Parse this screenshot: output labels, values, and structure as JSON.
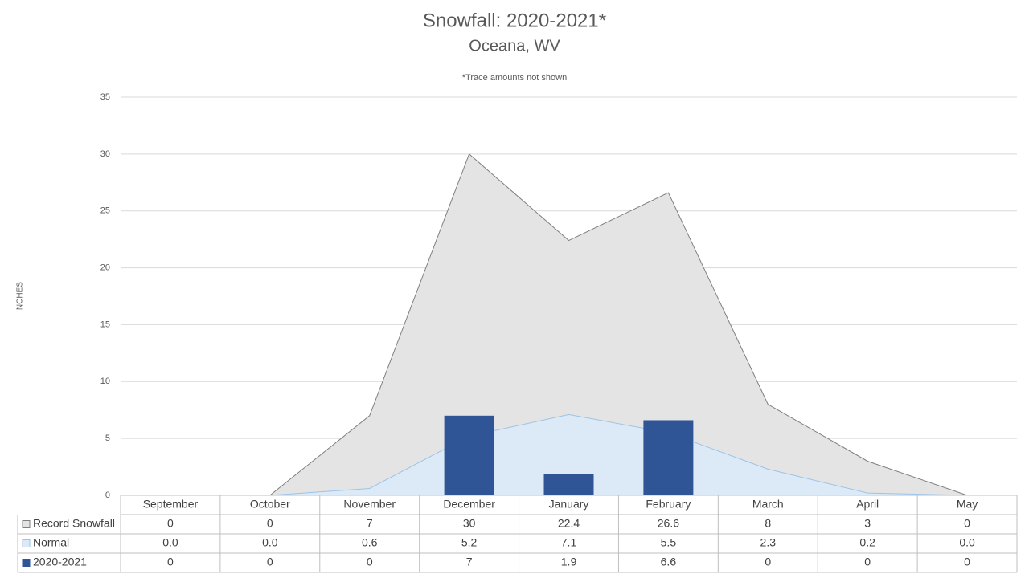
{
  "chart_data": {
    "type": "combo",
    "title": "Snowfall: 2020-2021*",
    "subtitle": "Oceana, WV",
    "note": "*Trace amounts not shown",
    "y_label": "INCHES",
    "categories": [
      "September",
      "October",
      "November",
      "December",
      "January",
      "February",
      "March",
      "April",
      "May"
    ],
    "series": [
      {
        "name": "Record Snowfall",
        "type": "area",
        "color": "#e4e4e4",
        "values": [
          0,
          0,
          7,
          30,
          22.4,
          26.6,
          8,
          3,
          0
        ]
      },
      {
        "name": "Normal",
        "type": "area",
        "color": "#dce9f6",
        "values": [
          0,
          0,
          0.6,
          5.2,
          7.1,
          5.5,
          2.3,
          0.2,
          0
        ],
        "value_labels": [
          "0.0",
          "0.0",
          "0.6",
          "5.2",
          "7.1",
          "5.5",
          "2.3",
          "0.2",
          "0.0"
        ]
      },
      {
        "name": "2020-2021",
        "type": "bar",
        "color": "#2f5597",
        "values": [
          0,
          0,
          0,
          7,
          1.9,
          6.6,
          0,
          0,
          0
        ]
      }
    ],
    "ylim": [
      0,
      35
    ],
    "yticks": [
      0,
      5,
      10,
      15,
      20,
      25,
      30,
      35
    ],
    "grid": true
  }
}
